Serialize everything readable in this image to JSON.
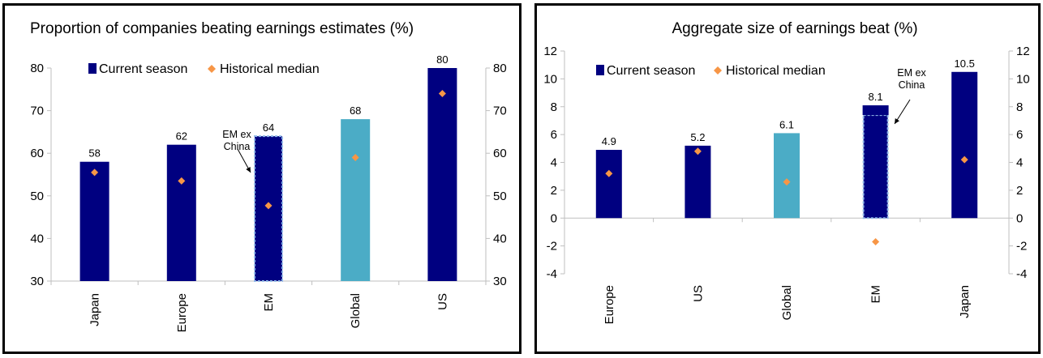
{
  "colors": {
    "current": "#000080",
    "global": "#4bacc6",
    "median": "#f79646",
    "em_ex_china_outline": "#8fb7e8",
    "axis": "#bfbfbf"
  },
  "chart_data": [
    {
      "type": "bar",
      "title": "Proportion of companies beating earnings estimates (%)",
      "categories": [
        "Japan",
        "Europe",
        "EM",
        "Global",
        "US"
      ],
      "series": [
        {
          "name": "Current season",
          "values": [
            58,
            62,
            64,
            68,
            80
          ]
        },
        {
          "name": "Historical median",
          "values": [
            55.5,
            53.5,
            47.7,
            59,
            74
          ]
        }
      ],
      "data_labels": [
        "58",
        "62",
        "64",
        "68",
        "80"
      ],
      "highlight_category": "Global",
      "outlined_category": "EM",
      "ylim": [
        30,
        80
      ],
      "y_ticks": [
        30,
        40,
        50,
        60,
        70,
        80
      ],
      "secondary_axis": true,
      "legend_position": "top-left",
      "annotation": {
        "category": "EM",
        "lines": [
          "EM ex",
          "China"
        ]
      }
    },
    {
      "type": "bar",
      "title": "Aggregate size of earnings beat (%)",
      "categories": [
        "Europe",
        "US",
        "Global",
        "EM",
        "Japan"
      ],
      "series": [
        {
          "name": "Current season",
          "values": [
            4.9,
            5.2,
            6.1,
            8.1,
            10.5
          ]
        },
        {
          "name": "Historical median",
          "values": [
            3.2,
            4.8,
            2.6,
            -1.7,
            4.2
          ]
        }
      ],
      "data_labels": [
        "4.9",
        "5.2",
        "6.1",
        "8.1",
        "10.5"
      ],
      "highlight_category": "Global",
      "outlined_category": "EM",
      "outlined_value": 7.4,
      "ylim": [
        -4,
        12
      ],
      "y_ticks": [
        -4,
        -2,
        0,
        2,
        4,
        6,
        8,
        10,
        12
      ],
      "secondary_axis": true,
      "legend_position": "top-left",
      "annotation": {
        "category": "EM",
        "lines": [
          "EM ex",
          "China"
        ]
      }
    }
  ]
}
